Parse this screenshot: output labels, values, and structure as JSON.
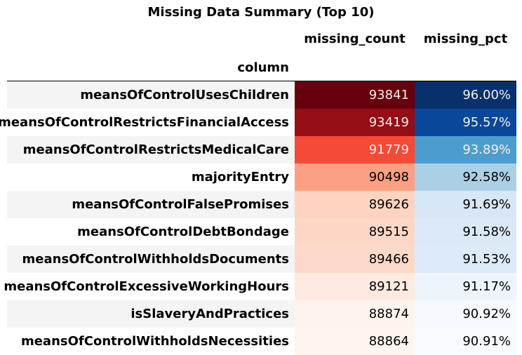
{
  "chart_data": {
    "type": "table",
    "title": "Missing Data Summary (Top 10)",
    "index_name": "column",
    "columns": [
      "missing_count",
      "missing_pct"
    ],
    "rows": [
      {
        "label": "meansOfControlUsesChildren",
        "missing_count": 93841,
        "missing_pct": "96.00%",
        "count_bg": "#67000d",
        "count_fg": "#f1f1f1",
        "pct_bg": "#08306b",
        "pct_fg": "#f1f1f1"
      },
      {
        "label": "meansOfControlRestrictsFinancialAccess",
        "missing_count": 93419,
        "missing_pct": "95.57%",
        "count_bg": "#950d15",
        "count_fg": "#f1f1f1",
        "pct_bg": "#08479a",
        "pct_fg": "#f1f1f1"
      },
      {
        "label": "meansOfControlRestrictsMedicalCare",
        "missing_count": 91779,
        "missing_pct": "93.89%",
        "count_bg": "#f44a36",
        "count_fg": "#f1f1f1",
        "pct_bg": "#4d9ccf",
        "pct_fg": "#f1f1f1"
      },
      {
        "label": "majorityEntry",
        "missing_count": 90498,
        "missing_pct": "92.58%",
        "count_bg": "#fca083",
        "count_fg": "#000000",
        "pct_bg": "#abcfe5",
        "pct_fg": "#000000"
      },
      {
        "label": "meansOfControlFalsePromises",
        "missing_count": 89626,
        "missing_pct": "91.69%",
        "count_bg": "#fdd4c2",
        "count_fg": "#000000",
        "pct_bg": "#d8e7f5",
        "pct_fg": "#000000"
      },
      {
        "label": "meansOfControlDebtBondage",
        "missing_count": 89515,
        "missing_pct": "91.58%",
        "count_bg": "#fdd7c6",
        "count_fg": "#000000",
        "pct_bg": "#dbe9f6",
        "pct_fg": "#000000"
      },
      {
        "label": "meansOfControlWithholdsDocuments",
        "missing_count": 89466,
        "missing_pct": "91.53%",
        "count_bg": "#fdd9ca",
        "count_fg": "#000000",
        "pct_bg": "#ddeaf7",
        "pct_fg": "#000000"
      },
      {
        "label": "meansOfControlExcessiveWorkingHours",
        "missing_count": 89121,
        "missing_pct": "91.17%",
        "count_bg": "#feeae1",
        "count_fg": "#000000",
        "pct_bg": "#edf4fc",
        "pct_fg": "#000000"
      },
      {
        "label": "isSlaveryAndPractices",
        "missing_count": 88874,
        "missing_pct": "90.92%",
        "count_bg": "#fff3ed",
        "count_fg": "#000000",
        "pct_bg": "#f6faff",
        "pct_fg": "#000000"
      },
      {
        "label": "meansOfControlWithholdsNecessities",
        "missing_count": 88864,
        "missing_pct": "90.91%",
        "count_bg": "#fff5f0",
        "count_fg": "#000000",
        "pct_bg": "#f7fbff",
        "pct_fg": "#000000"
      }
    ],
    "row_band_color": "#f4f4f4",
    "count_colormap": "Reds",
    "pct_colormap": "Blues"
  }
}
